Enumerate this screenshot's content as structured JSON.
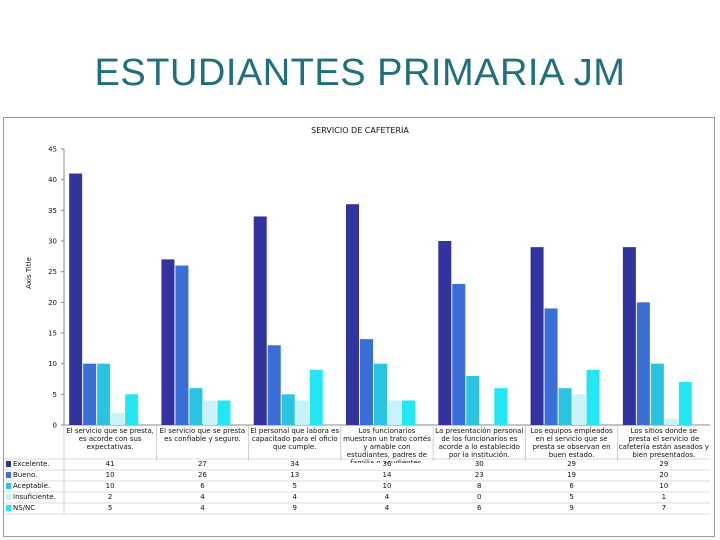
{
  "slide": {
    "title": "ESTUDIANTES PRIMARIA JM"
  },
  "chart_data": {
    "type": "bar",
    "title": "SERVICIO DE CAFETERÍA",
    "ylabel": "Axis Title",
    "xlabel": "",
    "ylim": [
      0,
      45
    ],
    "yticks": [
      0,
      5,
      10,
      15,
      20,
      25,
      30,
      35,
      40,
      45
    ],
    "grid": false,
    "legend_position": "bottom-table",
    "categories": [
      "El servicio que se presta, es acorde con sus expectativas.",
      "El servicio que se presta es confiable y seguro.",
      "El personal que labora es capacitado para el oficio que cumple.",
      "Los funcionarios muestran un trato cortés y amable con estudiantes, padres de familia o acudientes.",
      "La presentación personal de los funcionarios es acorde a lo establecido por la institución.",
      "Los equipos empleados en el servicio que se presta se observan en buen estado.",
      "Los sitios donde se presta el servicio de cafetería están aseados y bien presentados."
    ],
    "series": [
      {
        "name": "Excelente.",
        "color": "#3333a0",
        "values": [
          41,
          27,
          34,
          36,
          30,
          29,
          29
        ]
      },
      {
        "name": "Bueno.",
        "color": "#3a6fd8",
        "values": [
          10,
          26,
          13,
          14,
          23,
          19,
          20
        ]
      },
      {
        "name": "Aceptable.",
        "color": "#2bc4e0",
        "values": [
          10,
          6,
          5,
          10,
          8,
          6,
          10
        ]
      },
      {
        "name": "Insuficiente.",
        "color": "#c8f2fa",
        "values": [
          2,
          4,
          4,
          4,
          0,
          5,
          1
        ]
      },
      {
        "name": "NS/NC",
        "color": "#22e6f2",
        "values": [
          5,
          4,
          9,
          4,
          6,
          9,
          7
        ]
      }
    ]
  }
}
